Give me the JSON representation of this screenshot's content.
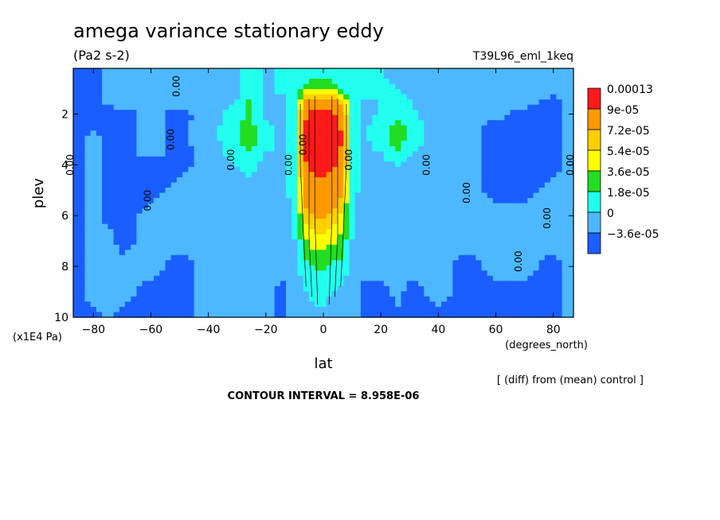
{
  "chart_data": {
    "type": "heatmap",
    "title": "amega variance stationary eddy",
    "units": "(Pa2 s-2)",
    "experiment": "T39L96_eml_1keq",
    "xlabel": "lat",
    "x_units": "(degrees_north)",
    "ylabel": "plev",
    "y_units": "(x1E4 Pa)",
    "xlim": [
      -87,
      87
    ],
    "ylim": [
      0.2,
      10
    ],
    "y_inverted": true,
    "x_ticks": [
      -80,
      -60,
      -40,
      -20,
      0,
      20,
      40,
      60,
      80
    ],
    "x_tick_labels": [
      "−80",
      "−60",
      "−40",
      "−20",
      "0",
      "20",
      "40",
      "60",
      "80"
    ],
    "y_ticks": [
      2,
      4,
      6,
      8,
      10
    ],
    "y_tick_labels": [
      "2",
      "4",
      "6",
      "8",
      "10"
    ],
    "contour_label": "0.00",
    "contour_interval_text": "CONTOUR INTERVAL = 8.958E-06",
    "comparison_note": "[ (diff) from (mean) control ]",
    "colorbar": {
      "labels": [
        "0.00013",
        "9e-05",
        "7.2e-05",
        "5.4e-05",
        "3.6e-05",
        "1.8e-05",
        "0",
        "−3.6e-05"
      ],
      "colors": [
        "#ff1a1a",
        "#ff9900",
        "#ffd000",
        "#ffff00",
        "#22dd22",
        "#22ffee",
        "#4db8ff",
        "#1a5eff"
      ]
    },
    "levels": [
      -3.6e-05,
      0,
      1.8e-05,
      3.6e-05,
      5.4e-05,
      7.2e-05,
      9e-05,
      0.00013
    ],
    "lat": [
      -87,
      -80,
      -75,
      -70,
      -60,
      -50,
      -40,
      -30,
      -26,
      -20,
      -14,
      -10,
      -6,
      -3,
      0,
      3,
      6,
      10,
      14,
      20,
      26,
      30,
      40,
      50,
      60,
      70,
      80,
      87
    ],
    "plev": [
      0.5,
      1.0,
      1.5,
      2.0,
      2.5,
      3.0,
      3.5,
      4.0,
      5.0,
      6.0,
      7.0,
      8.0,
      9.0,
      10.0
    ],
    "values": [
      [
        -0.3,
        -0.3,
        0.2,
        0.3,
        0.4,
        0.3,
        0.3,
        0.8,
        1.5,
        0.8,
        1.2,
        1.2,
        1.5,
        2.0,
        1.8,
        1.4,
        1.2,
        1.0,
        1.0,
        1.0,
        0.8,
        0.6,
        0.5,
        0.4,
        0.4,
        0.3,
        0.2,
        0.4
      ],
      [
        -0.3,
        -0.3,
        0.2,
        0.3,
        0.4,
        0.3,
        0.4,
        0.8,
        1.8,
        0.8,
        1.2,
        1.5,
        2.5,
        3.0,
        3.0,
        2.5,
        2.0,
        1.3,
        1.2,
        1.2,
        1.0,
        0.7,
        0.5,
        0.4,
        0.4,
        0.4,
        0.2,
        0.4
      ],
      [
        -0.3,
        -0.3,
        0.2,
        0.3,
        0.3,
        0.3,
        0.4,
        1.0,
        2.0,
        0.8,
        0.8,
        2.0,
        5.0,
        6.0,
        6.0,
        5.5,
        4.5,
        1.5,
        1.0,
        1.0,
        1.6,
        1.0,
        0.4,
        0.3,
        0.3,
        0.3,
        -0.2,
        0.3
      ],
      [
        -0.4,
        -0.3,
        -0.3,
        -0.3,
        0.3,
        -0.3,
        0.4,
        1.5,
        2.0,
        0.8,
        0.8,
        1.8,
        7.0,
        8.5,
        8.5,
        8.0,
        6.5,
        1.4,
        0.8,
        1.0,
        1.7,
        1.3,
        0.4,
        0.3,
        0.3,
        -0.3,
        -0.3,
        0.3
      ],
      [
        -0.4,
        -0.3,
        -0.3,
        -0.3,
        0.3,
        -0.3,
        0.5,
        1.8,
        2.5,
        1.2,
        0.8,
        1.6,
        7.5,
        9.5,
        9.5,
        9.0,
        7.0,
        1.6,
        0.8,
        1.4,
        2.6,
        1.6,
        0.4,
        0.2,
        -0.3,
        -0.3,
        -0.3,
        0.3
      ],
      [
        -0.4,
        0.4,
        -0.3,
        -0.3,
        0.3,
        -0.3,
        0.5,
        1.8,
        2.7,
        1.4,
        0.8,
        1.8,
        7.5,
        9.5,
        9.8,
        9.5,
        7.5,
        1.8,
        0.8,
        1.4,
        2.6,
        1.6,
        0.4,
        0.2,
        -0.3,
        -0.3,
        -0.3,
        0.3
      ],
      [
        -0.4,
        0.4,
        -0.3,
        -0.3,
        0.3,
        -0.3,
        0.4,
        1.5,
        1.8,
        1.0,
        0.8,
        1.8,
        7.5,
        9.0,
        9.5,
        9.0,
        7.0,
        1.8,
        0.8,
        1.0,
        2.0,
        1.2,
        0.4,
        0.2,
        -0.3,
        -0.3,
        -0.3,
        0.3
      ],
      [
        -0.4,
        0.4,
        -0.3,
        -0.3,
        -0.3,
        -0.3,
        0.4,
        1.0,
        1.2,
        0.8,
        0.7,
        1.7,
        7.0,
        8.0,
        8.0,
        7.5,
        6.5,
        1.6,
        0.7,
        0.8,
        1.0,
        0.8,
        0.3,
        0.2,
        -0.3,
        -0.3,
        -0.3,
        0.3
      ],
      [
        -0.4,
        0.4,
        -0.3,
        -0.3,
        -0.3,
        0.3,
        0.4,
        0.8,
        0.8,
        0.6,
        0.6,
        1.5,
        6.0,
        6.5,
        6.5,
        6.0,
        5.5,
        1.4,
        0.6,
        0.5,
        0.8,
        0.6,
        0.3,
        0.3,
        -0.3,
        -0.3,
        0.3,
        0.3
      ],
      [
        -0.4,
        0.3,
        -0.3,
        -0.3,
        0.3,
        0.3,
        0.4,
        0.6,
        0.6,
        0.6,
        0.5,
        1.2,
        4.5,
        5.2,
        5.2,
        4.8,
        4.0,
        1.2,
        0.5,
        0.5,
        0.6,
        0.5,
        0.3,
        0.3,
        0.3,
        0.3,
        0.3,
        0.3
      ],
      [
        -0.3,
        0.3,
        0.3,
        -0.3,
        0.3,
        0.3,
        0.3,
        0.5,
        0.5,
        0.5,
        0.4,
        1.0,
        3.0,
        3.6,
        3.6,
        3.2,
        2.8,
        1.0,
        0.4,
        0.4,
        0.5,
        0.4,
        0.3,
        0.3,
        0.3,
        0.3,
        0.3,
        0.3
      ],
      [
        -0.3,
        0.3,
        0.3,
        0.3,
        0.3,
        -0.3,
        0.3,
        0.3,
        0.4,
        0.4,
        0.3,
        0.8,
        1.6,
        2.2,
        2.2,
        1.8,
        1.6,
        0.8,
        0.3,
        0.3,
        0.4,
        0.3,
        0.3,
        -0.3,
        0.3,
        0.3,
        -0.3,
        0.3
      ],
      [
        -0.3,
        0.3,
        0.3,
        0.3,
        -0.3,
        -0.3,
        0.3,
        0.3,
        0.3,
        0.3,
        -0.3,
        0.4,
        1.0,
        1.2,
        1.2,
        1.0,
        0.8,
        0.4,
        -0.3,
        -0.3,
        0.3,
        -0.3,
        0.3,
        -0.3,
        -0.3,
        -0.3,
        -0.3,
        0.3
      ],
      [
        -0.3,
        -0.3,
        0.3,
        -0.3,
        -0.3,
        -0.3,
        0.3,
        0.3,
        0.3,
        0.3,
        -0.3,
        0.3,
        0.6,
        0.8,
        0.8,
        0.6,
        0.4,
        0.3,
        -0.3,
        -0.3,
        -0.3,
        -0.3,
        -0.3,
        -0.3,
        -0.3,
        -0.3,
        -0.3,
        0.3
      ]
    ],
    "value_scale": "x 1.8e-05"
  }
}
